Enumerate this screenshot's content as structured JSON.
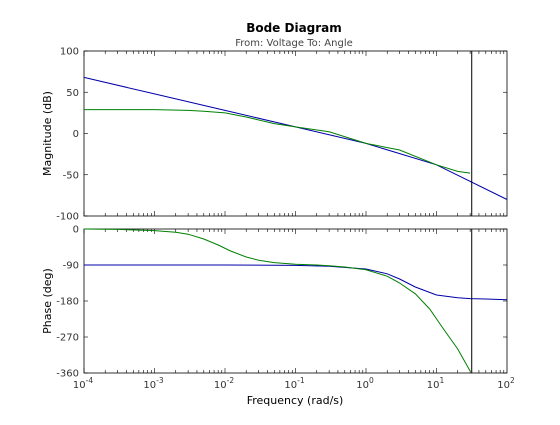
{
  "chart_data": {
    "type": "line",
    "title": "Bode Diagram",
    "subtitle": "From: Voltage  To: Angle",
    "xlabel": "Frequency  (rad/s)",
    "xscale": "log",
    "xlim": [
      0.0001,
      100
    ],
    "x_tick_labels": [
      {
        "base": "10",
        "exp": "-4",
        "value": 0.0001
      },
      {
        "base": "10",
        "exp": "-3",
        "value": 0.001
      },
      {
        "base": "10",
        "exp": "-2",
        "value": 0.01
      },
      {
        "base": "10",
        "exp": "-1",
        "value": 0.1
      },
      {
        "base": "10",
        "exp": "0",
        "value": 1
      },
      {
        "base": "10",
        "exp": "1",
        "value": 10
      },
      {
        "base": "10",
        "exp": "2",
        "value": 100
      }
    ],
    "marker_line_x": 31.6,
    "colors": {
      "series_1": "#0000aa",
      "series_2": "#008000",
      "marker": "#000000"
    },
    "panels": [
      {
        "id": "magnitude",
        "ylabel": "Magnitude (dB)",
        "ylim": [
          -100,
          100
        ],
        "y_ticks": [
          100,
          50,
          0,
          -50,
          -100
        ],
        "series": [
          {
            "id": "series_1",
            "x": [
              0.0001,
              0.001,
              0.01,
              0.1,
              1,
              10,
              100
            ],
            "y": [
              68,
              48,
              28,
              8,
              -12,
              -38,
              -80
            ]
          },
          {
            "id": "series_2",
            "x": [
              0.0001,
              0.001,
              0.003,
              0.005,
              0.01,
              0.02,
              0.05,
              0.1,
              0.3,
              1,
              3,
              10,
              20,
              30
            ],
            "y": [
              29,
              29,
              28,
              27,
              25,
              20,
              12,
              8,
              2,
              -12,
              -20,
              -38,
              -46,
              -48
            ]
          }
        ]
      },
      {
        "id": "phase",
        "ylabel": "Phase (deg)",
        "ylim": [
          -360,
          0
        ],
        "y_ticks": [
          0,
          -90,
          -180,
          -270,
          -360
        ],
        "series": [
          {
            "id": "series_1",
            "x": [
              0.0001,
              0.001,
              0.01,
              0.1,
              0.3,
              1,
              2,
              3,
              5,
              10,
              20,
              30,
              50,
              100
            ],
            "y": [
              -90,
              -90,
              -90,
              -91,
              -93,
              -100,
              -112,
              -125,
              -145,
              -165,
              -172,
              -174,
              -175,
              -177
            ]
          },
          {
            "id": "series_2",
            "x": [
              0.0001,
              0.0003,
              0.001,
              0.002,
              0.003,
              0.005,
              0.008,
              0.012,
              0.02,
              0.03,
              0.05,
              0.1,
              0.2,
              0.3,
              0.5,
              1,
              2,
              3,
              5,
              8,
              12,
              20,
              30
            ],
            "y": [
              0,
              -1,
              -4,
              -8,
              -13,
              -25,
              -40,
              -55,
              -70,
              -78,
              -84,
              -88,
              -90,
              -92,
              -95,
              -102,
              -118,
              -135,
              -162,
              -200,
              -245,
              -300,
              -355
            ]
          }
        ]
      }
    ]
  }
}
